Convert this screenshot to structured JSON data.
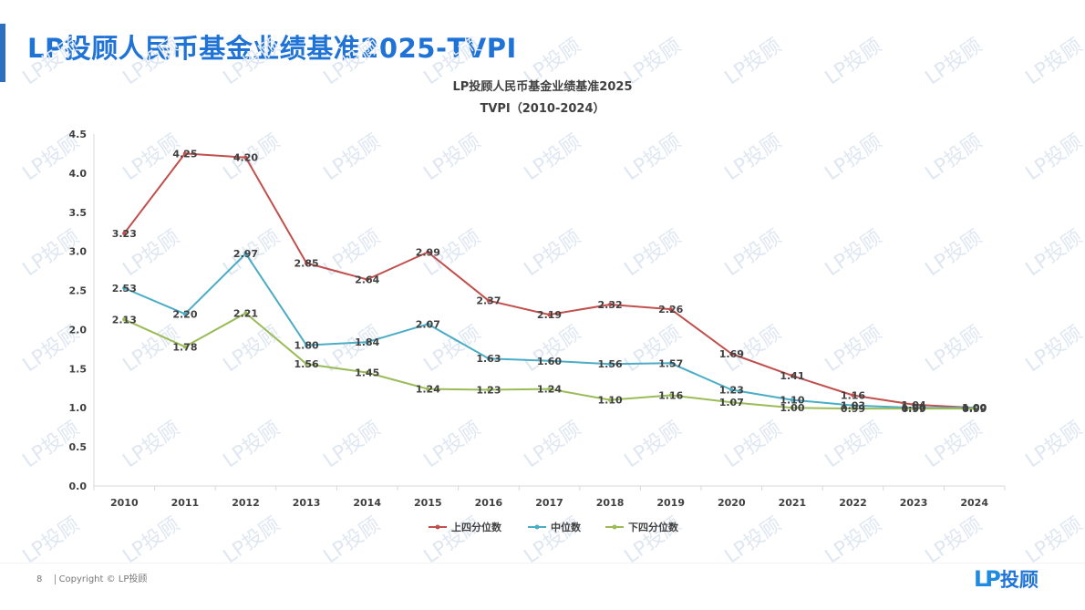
{
  "slide": {
    "title": "LP投顾人民币基金业绩基准2025-TVPI",
    "page_number": "8",
    "copyright": "Copyright © LP投顾",
    "logo_mark": "LP",
    "logo_text": "投顾",
    "watermark_text": "LP投顾"
  },
  "colors": {
    "title": "#1f73d6",
    "upper": "#c0504d",
    "median": "#4bacc6",
    "lower": "#9bbb59",
    "axis": "#d9d9d9",
    "text": "#404040"
  },
  "chart_data": {
    "type": "line",
    "title": "LP投顾人民币基金业绩基准2025",
    "subtitle": "TVPI（2010-2024）",
    "xlabel": "",
    "ylabel": "",
    "ylim": [
      0,
      4.5
    ],
    "yticks": [
      "0.0",
      "0.5",
      "1.0",
      "1.5",
      "2.0",
      "2.5",
      "3.0",
      "3.5",
      "4.0",
      "4.5"
    ],
    "grid": false,
    "legend_position": "bottom",
    "categories": [
      "2010",
      "2011",
      "2012",
      "2013",
      "2014",
      "2015",
      "2016",
      "2017",
      "2018",
      "2019",
      "2020",
      "2021",
      "2022",
      "2023",
      "2024"
    ],
    "series": [
      {
        "name": "上四分位数",
        "color": "#c0504d",
        "values": [
          3.23,
          4.25,
          4.2,
          2.85,
          2.64,
          2.99,
          2.37,
          2.19,
          2.32,
          2.26,
          1.69,
          1.41,
          1.16,
          1.04,
          1.0
        ],
        "labels": [
          "3.23",
          "4.25",
          "4.20",
          "2.85",
          "2.64",
          "2.99",
          "2.37",
          "2.19",
          "2.32",
          "2.26",
          "1.69",
          "1.41",
          "1.16",
          "1.04",
          "1.00"
        ]
      },
      {
        "name": "中位数",
        "color": "#4bacc6",
        "values": [
          2.53,
          2.2,
          2.97,
          1.8,
          1.84,
          2.07,
          1.63,
          1.6,
          1.56,
          1.57,
          1.23,
          1.1,
          1.03,
          1.0,
          1.0
        ],
        "labels": [
          "2.53",
          "2.20",
          "2.97",
          "1.80",
          "1.84",
          "2.07",
          "1.63",
          "1.60",
          "1.56",
          "1.57",
          "1.23",
          "1.10",
          "1.03",
          "1.00",
          "1.00"
        ]
      },
      {
        "name": "下四分位数",
        "color": "#9bbb59",
        "values": [
          2.13,
          1.78,
          2.21,
          1.56,
          1.45,
          1.24,
          1.23,
          1.24,
          1.1,
          1.16,
          1.07,
          1.0,
          0.99,
          0.99,
          0.99
        ],
        "labels": [
          "2.13",
          "1.78",
          "2.21",
          "1.56",
          "1.45",
          "1.24",
          "1.23",
          "1.24",
          "1.10",
          "1.16",
          "1.07",
          "1.00",
          "0.99",
          "0.99",
          "0.99"
        ]
      }
    ]
  }
}
